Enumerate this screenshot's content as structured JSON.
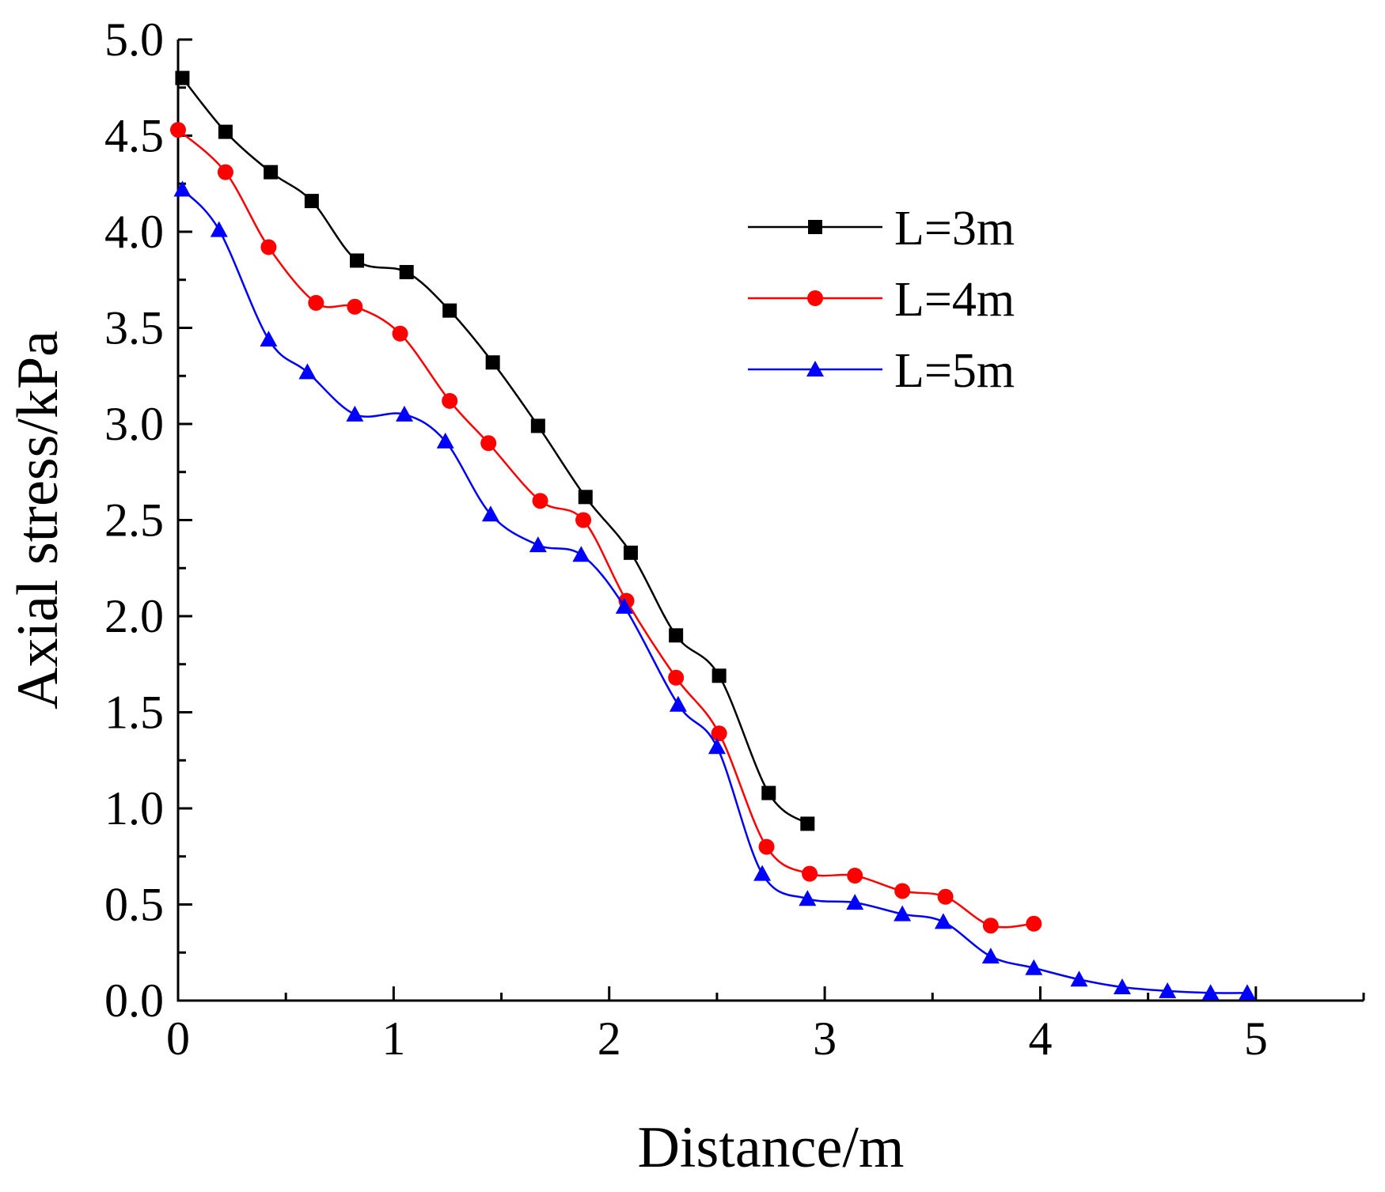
{
  "chart_data": {
    "type": "line",
    "title": "",
    "xlabel": "Distance/m",
    "ylabel": "Axial stress/kPa",
    "xlim": [
      0,
      5.5
    ],
    "ylim": [
      0,
      5.0
    ],
    "x_ticks": [
      "0",
      "1",
      "2",
      "3",
      "4",
      "5"
    ],
    "y_ticks": [
      "0.0",
      "0.5",
      "1.0",
      "1.5",
      "2.0",
      "2.5",
      "3.0",
      "3.5",
      "4.0",
      "4.5",
      "5.0"
    ],
    "legend_position": "top-right",
    "series": [
      {
        "name": "L=3m",
        "color": "#000000",
        "marker": "square",
        "x": [
          0.02,
          0.22,
          0.43,
          0.62,
          0.83,
          1.06,
          1.26,
          1.46,
          1.67,
          1.89,
          2.1,
          2.31,
          2.51,
          2.74,
          2.92
        ],
        "y": [
          4.8,
          4.52,
          4.31,
          4.16,
          3.85,
          3.79,
          3.59,
          3.32,
          2.99,
          2.62,
          2.33,
          1.9,
          1.69,
          1.08,
          0.92
        ]
      },
      {
        "name": "L=4m",
        "color": "#ff0000",
        "marker": "circle",
        "x": [
          0.0,
          0.22,
          0.42,
          0.64,
          0.82,
          1.03,
          1.26,
          1.44,
          1.68,
          1.88,
          2.08,
          2.31,
          2.51,
          2.73,
          2.93,
          3.14,
          3.36,
          3.56,
          3.77,
          3.97
        ],
        "y": [
          4.53,
          4.31,
          3.92,
          3.63,
          3.61,
          3.47,
          3.12,
          2.9,
          2.6,
          2.5,
          2.08,
          1.68,
          1.39,
          0.8,
          0.66,
          0.65,
          0.57,
          0.54,
          0.39,
          0.4
        ]
      },
      {
        "name": "L=5m",
        "color": "#0000ff",
        "marker": "triangle",
        "x": [
          0.02,
          0.19,
          0.42,
          0.6,
          0.82,
          1.05,
          1.24,
          1.45,
          1.67,
          1.87,
          2.07,
          2.32,
          2.5,
          2.71,
          2.92,
          3.14,
          3.36,
          3.55,
          3.77,
          3.97,
          4.18,
          4.38,
          4.59,
          4.79,
          4.96
        ],
        "y": [
          4.22,
          4.01,
          3.44,
          3.27,
          3.05,
          3.05,
          2.91,
          2.53,
          2.37,
          2.32,
          2.05,
          1.54,
          1.32,
          0.66,
          0.53,
          0.51,
          0.45,
          0.41,
          0.23,
          0.17,
          0.11,
          0.07,
          0.05,
          0.04,
          0.04
        ]
      }
    ]
  }
}
